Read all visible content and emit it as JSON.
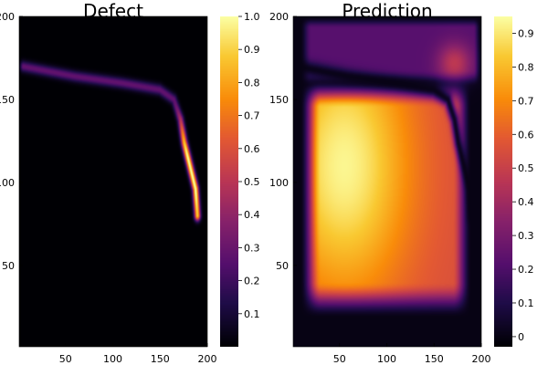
{
  "chart_data": [
    {
      "type": "heatmap",
      "title": "Defect",
      "colormap": "inferno",
      "xlim": [
        1,
        200
      ],
      "ylim": [
        1,
        200
      ],
      "xticks": [
        50,
        100,
        150,
        200
      ],
      "yticks": [
        50,
        100,
        150,
        200
      ],
      "ytick_labels": [
        "50",
        "100",
        "150",
        "200"
      ],
      "clim": [
        0.0,
        1.0
      ],
      "colorbar_ticks": [
        0.1,
        0.2,
        0.3,
        0.4,
        0.5,
        0.6,
        0.7,
        0.8,
        0.9,
        1.0
      ],
      "colorbar_tick_labels": [
        "0.1",
        "0.2",
        "0.3",
        "0.4",
        "0.5",
        "0.6",
        "0.7",
        "0.8",
        "0.9",
        "1.0"
      ],
      "grid": false,
      "features": [
        {
          "kind": "defect-curve",
          "points": [
            [
              5,
              170
            ],
            [
              60,
              164
            ],
            [
              110,
              160
            ],
            [
              150,
              156
            ],
            [
              165,
              150
            ],
            [
              172,
              138
            ],
            [
              176,
              124
            ],
            [
              182,
              110
            ],
            [
              188,
              96
            ],
            [
              190,
              80
            ]
          ],
          "peak_value": 0.95,
          "low_value": 0.25
        }
      ]
    },
    {
      "type": "heatmap",
      "title": "Prediction",
      "colormap": "inferno",
      "xlim": [
        1,
        200
      ],
      "ylim": [
        1,
        200
      ],
      "xticks": [
        50,
        100,
        150,
        200
      ],
      "yticks": [
        50,
        100,
        150,
        200
      ],
      "ytick_labels": [
        "50",
        "100",
        "150",
        "200"
      ],
      "clim": [
        -0.03,
        0.95
      ],
      "colorbar_ticks": [
        0.0,
        0.1,
        0.2,
        0.3,
        0.4,
        0.5,
        0.6,
        0.7,
        0.8,
        0.9
      ],
      "colorbar_tick_labels": [
        "0",
        "0.1",
        "0.2",
        "0.3",
        "0.4",
        "0.5",
        "0.6",
        "0.7",
        "0.8",
        "0.9"
      ],
      "grid": false,
      "features": [
        {
          "kind": "bright-region",
          "x_range": [
            10,
            185
          ],
          "y_range": [
            25,
            160
          ],
          "peak_value": 0.92,
          "hotspot": [
            50,
            110
          ]
        },
        {
          "kind": "upper-band",
          "x_range": [
            10,
            200
          ],
          "y_range": [
            160,
            200
          ],
          "value": 0.25,
          "hotspot": [
            170,
            172
          ],
          "hotspot_value": 0.55
        },
        {
          "kind": "dark-seam",
          "follows": "defect-curve",
          "value": 0.0
        }
      ]
    }
  ]
}
